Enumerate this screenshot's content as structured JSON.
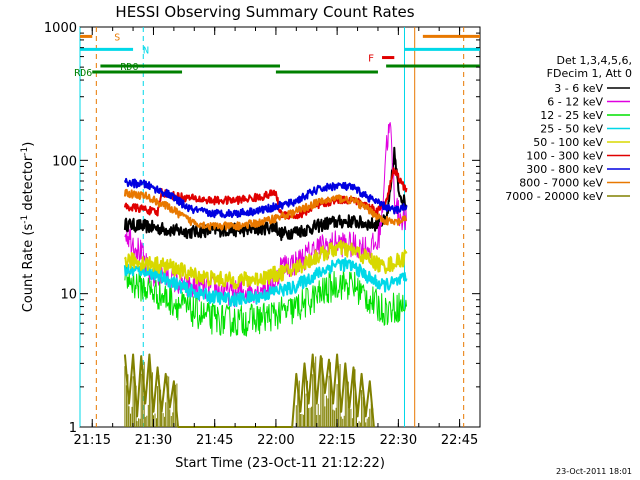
{
  "chart_data": {
    "type": "line",
    "title": "HESSI Observing Summary Count Rates",
    "xlabel": "Start Time (23-Oct-11 21:12:22)",
    "ylabel": "Count Rate (s⁻¹ detector⁻¹)",
    "ylabel_parts": [
      "Count Rate (s",
      "-1",
      " detector",
      "-1",
      ")"
    ],
    "yscale": "log",
    "xlim_min": [
      0,
      98
    ],
    "ylim": [
      1,
      1000
    ],
    "grid": false,
    "xticks": [
      {
        "min": 3,
        "label": "21:15"
      },
      {
        "min": 18,
        "label": "21:30"
      },
      {
        "min": 33,
        "label": "21:45"
      },
      {
        "min": 48,
        "label": "22:00"
      },
      {
        "min": 63,
        "label": "22:15"
      },
      {
        "min": 78,
        "label": "22:30"
      },
      {
        "min": 93,
        "label": "22:45"
      }
    ],
    "yticks": [
      {
        "value": 1,
        "label": "1"
      },
      {
        "value": 10,
        "label": "10"
      },
      {
        "value": 100,
        "label": "100"
      },
      {
        "value": 1000,
        "label": "1000"
      }
    ],
    "legend": {
      "placement": "right",
      "header": [
        "Det 1,3,4,5,6,",
        "FDecim 1, Att 0"
      ],
      "entries": [
        "3 - 6 keV",
        "6 - 12 keV",
        "12 - 25 keV",
        "25 - 50 keV",
        "50 - 100 keV",
        "100 - 300 keV",
        "300 - 800 keV",
        "800 - 7000 keV",
        "7000 - 20000 keV"
      ]
    },
    "series": [
      {
        "name": "3 - 6 keV",
        "color": "#000000",
        "noise": 0.05,
        "points": [
          [
            11,
            33
          ],
          [
            16,
            32
          ],
          [
            22,
            30
          ],
          [
            27,
            29
          ],
          [
            33,
            30
          ],
          [
            40,
            30
          ],
          [
            45,
            31
          ],
          [
            48,
            32
          ],
          [
            49,
            28
          ],
          [
            55,
            30
          ],
          [
            61,
            34
          ],
          [
            66,
            35
          ],
          [
            72,
            33
          ],
          [
            75,
            35
          ],
          [
            76,
            55
          ],
          [
            77,
            115
          ],
          [
            78,
            60
          ],
          [
            80,
            45
          ]
        ]
      },
      {
        "name": "6 - 12 keV",
        "color": "#e000e0",
        "noise": 0.1,
        "points": [
          [
            11,
            30
          ],
          [
            15,
            20
          ],
          [
            17,
            14
          ],
          [
            19,
            14
          ],
          [
            22,
            13
          ],
          [
            27,
            11
          ],
          [
            32,
            11
          ],
          [
            38,
            10
          ],
          [
            44,
            11
          ],
          [
            48,
            12
          ],
          [
            49,
            16
          ],
          [
            53,
            17
          ],
          [
            58,
            22
          ],
          [
            63,
            24
          ],
          [
            67,
            23
          ],
          [
            71,
            22
          ],
          [
            73,
            24
          ],
          [
            74,
            40
          ],
          [
            75,
            130
          ],
          [
            76,
            180
          ],
          [
            77,
            55
          ],
          [
            78,
            40
          ],
          [
            80,
            35
          ]
        ]
      },
      {
        "name": "12 - 25 keV",
        "color": "#00e000",
        "noise": 0.12,
        "points": [
          [
            11,
            13
          ],
          [
            16,
            11
          ],
          [
            22,
            9
          ],
          [
            27,
            7.5
          ],
          [
            32,
            6.5
          ],
          [
            38,
            6.2
          ],
          [
            44,
            6.5
          ],
          [
            48,
            7
          ],
          [
            52,
            7.5
          ],
          [
            58,
            9.5
          ],
          [
            63,
            12
          ],
          [
            67,
            11.5
          ],
          [
            71,
            9
          ],
          [
            73,
            8
          ],
          [
            75,
            7.5
          ],
          [
            78,
            8
          ],
          [
            80,
            8
          ]
        ]
      },
      {
        "name": "25 - 50 keV",
        "color": "#00d8e8",
        "noise": 0.05,
        "points": [
          [
            11,
            15
          ],
          [
            16,
            15
          ],
          [
            22,
            12.5
          ],
          [
            27,
            10.5
          ],
          [
            32,
            9.5
          ],
          [
            38,
            9
          ],
          [
            44,
            9.5
          ],
          [
            48,
            10.5
          ],
          [
            52,
            11
          ],
          [
            58,
            14
          ],
          [
            63,
            17
          ],
          [
            67,
            16
          ],
          [
            71,
            13
          ],
          [
            74,
            11.5
          ],
          [
            77,
            12
          ],
          [
            80,
            13
          ]
        ]
      },
      {
        "name": "50 - 100 keV",
        "color": "#d8d800",
        "noise": 0.06,
        "points": [
          [
            11,
            18
          ],
          [
            16,
            17
          ],
          [
            22,
            16
          ],
          [
            27,
            14
          ],
          [
            32,
            13
          ],
          [
            38,
            12.5
          ],
          [
            44,
            13
          ],
          [
            48,
            14
          ],
          [
            52,
            15
          ],
          [
            58,
            19
          ],
          [
            63,
            22
          ],
          [
            67,
            21
          ],
          [
            71,
            18
          ],
          [
            74,
            16
          ],
          [
            77,
            17
          ],
          [
            79,
            18
          ],
          [
            80,
            20
          ]
        ]
      },
      {
        "name": "100 - 300 keV",
        "color": "#e00000",
        "noise": 0.03,
        "points": [
          [
            11,
            45
          ],
          [
            16,
            43
          ],
          [
            19,
            40
          ],
          [
            20,
            58
          ],
          [
            22,
            55
          ],
          [
            27,
            52
          ],
          [
            32,
            50
          ],
          [
            38,
            50
          ],
          [
            44,
            53
          ],
          [
            48,
            57
          ],
          [
            49,
            40
          ],
          [
            53,
            38
          ],
          [
            58,
            45
          ],
          [
            63,
            51
          ],
          [
            67,
            50
          ],
          [
            71,
            45
          ],
          [
            73,
            42
          ],
          [
            75,
            50
          ],
          [
            77,
            85
          ],
          [
            79,
            65
          ],
          [
            80,
            62
          ]
        ]
      },
      {
        "name": "300 - 800 keV",
        "color": "#0000e0",
        "noise": 0.03,
        "points": [
          [
            11,
            68
          ],
          [
            16,
            66
          ],
          [
            22,
            55
          ],
          [
            27,
            43
          ],
          [
            32,
            40
          ],
          [
            38,
            40
          ],
          [
            44,
            42
          ],
          [
            48,
            45
          ],
          [
            52,
            48
          ],
          [
            58,
            60
          ],
          [
            63,
            65
          ],
          [
            67,
            62
          ],
          [
            71,
            52
          ],
          [
            74,
            46
          ],
          [
            77,
            42
          ],
          [
            79,
            44
          ],
          [
            80,
            46
          ]
        ]
      },
      {
        "name": "800 - 7000 keV",
        "color": "#e87800",
        "noise": 0.03,
        "points": [
          [
            11,
            57
          ],
          [
            16,
            54
          ],
          [
            22,
            44
          ],
          [
            27,
            35
          ],
          [
            32,
            32
          ],
          [
            38,
            32
          ],
          [
            44,
            34
          ],
          [
            48,
            37
          ],
          [
            52,
            40
          ],
          [
            58,
            48
          ],
          [
            63,
            52
          ],
          [
            67,
            50
          ],
          [
            71,
            42
          ],
          [
            74,
            36
          ],
          [
            77,
            34
          ],
          [
            79,
            35
          ],
          [
            80,
            36
          ]
        ]
      },
      {
        "name": "7000 - 20000 keV",
        "color": "#808000",
        "noise": 0,
        "points": [
          [
            11,
            3.5
          ],
          [
            12,
            1.5
          ],
          [
            13,
            3.5
          ],
          [
            14,
            1.2
          ],
          [
            15,
            3.4
          ],
          [
            16,
            1.5
          ],
          [
            17,
            3.5
          ],
          [
            18,
            1.3
          ],
          [
            19,
            2.8
          ],
          [
            20,
            1.3
          ],
          [
            21,
            2.5
          ],
          [
            22,
            1.4
          ],
          [
            23,
            2.2
          ],
          [
            24,
            1
          ],
          [
            52,
            1
          ],
          [
            53,
            2.5
          ],
          [
            54,
            1.3
          ],
          [
            55,
            3
          ],
          [
            56,
            1.5
          ],
          [
            57,
            3.5
          ],
          [
            58,
            1.5
          ],
          [
            59,
            3.4
          ],
          [
            60,
            1.8
          ],
          [
            61,
            3.2
          ],
          [
            62,
            1.5
          ],
          [
            63,
            3.5
          ],
          [
            64,
            1.3
          ],
          [
            65,
            3
          ],
          [
            66,
            1.4
          ],
          [
            67,
            2.8
          ],
          [
            68,
            1.2
          ],
          [
            69,
            2.5
          ],
          [
            70,
            1.2
          ],
          [
            71,
            2.2
          ],
          [
            72,
            1
          ]
        ]
      }
    ],
    "flags": [
      {
        "label": "S",
        "color": "#e87800",
        "value": 850,
        "segments": [
          [
            0,
            3
          ],
          [
            84,
            98
          ]
        ]
      },
      {
        "label": "N",
        "color": "#00d8e8",
        "value": 680,
        "segments": [
          [
            0,
            13
          ],
          [
            79.5,
            98
          ]
        ]
      },
      {
        "label": "F",
        "color": "#e00000",
        "value": 590,
        "segments": [
          [
            74,
            77
          ]
        ]
      },
      {
        "label": "RDO",
        "color": "#008000",
        "value": 510,
        "segments": [
          [
            5,
            49
          ],
          [
            75,
            98
          ]
        ]
      },
      {
        "label": "RD6",
        "color": "#008000",
        "value": 460,
        "segments": [
          [
            3,
            25
          ],
          [
            48,
            73
          ]
        ]
      }
    ],
    "vlines": [
      {
        "min": 0,
        "color": "#00d8e8",
        "style": "solid"
      },
      {
        "min": 4,
        "color": "#e87800",
        "style": "dashed"
      },
      {
        "min": 15.5,
        "color": "#00d8e8",
        "style": "dashed"
      },
      {
        "min": 79.5,
        "color": "#00d8e8",
        "style": "solid"
      },
      {
        "min": 82,
        "color": "#e87800",
        "style": "solid"
      },
      {
        "min": 94,
        "color": "#e87800",
        "style": "dashed"
      }
    ],
    "footer_stamp": "23-Oct-2011 18:01"
  }
}
